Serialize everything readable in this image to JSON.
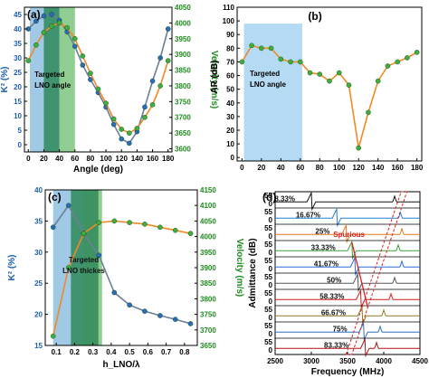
{
  "chart_data": [
    {
      "panel": "(a)",
      "type": "line",
      "xlabel": "Angle (deg)",
      "ylabel": "K² (%)",
      "ylabel_right": "Velocity (m/s)",
      "xlim": [
        -5,
        185
      ],
      "ylim": [
        -2.5,
        47.5
      ],
      "ylim_right": [
        3590,
        4050
      ],
      "xticks": [
        0,
        20,
        40,
        60,
        80,
        100,
        120,
        140,
        160,
        180
      ],
      "yticks": [
        0,
        5,
        10,
        15,
        20,
        25,
        30,
        35,
        40,
        45
      ],
      "yticks_right": [
        3600,
        3650,
        3700,
        3750,
        3800,
        3850,
        3900,
        3950,
        4000,
        4050
      ],
      "annotation": "Targeted LNO angle",
      "series": [
        {
          "axis": "left",
          "color": "#6b7f99",
          "marker": "#2a6cb8",
          "x": [
            0,
            10,
            20,
            30,
            40,
            50,
            60,
            70,
            80,
            90,
            100,
            110,
            120,
            130,
            140,
            150,
            160,
            170,
            180
          ],
          "values": [
            40.0,
            42.7,
            44.5,
            45.0,
            43.0,
            39.0,
            34.0,
            27.5,
            22.5,
            18.0,
            13.0,
            7.0,
            2.0,
            0.5,
            4.5,
            13.0,
            22.0,
            30.0,
            40.0
          ]
        },
        {
          "axis": "right",
          "color": "#f08a24",
          "marker": "#3fae3f",
          "x": [
            0,
            10,
            20,
            30,
            40,
            50,
            60,
            70,
            80,
            90,
            100,
            110,
            120,
            130,
            140,
            150,
            160,
            170,
            180
          ],
          "values": [
            3880,
            3930,
            3970,
            3990,
            4000,
            3985,
            3950,
            3895,
            3840,
            3790,
            3745,
            3695,
            3662,
            3650,
            3665,
            3700,
            3740,
            3800,
            3880
          ]
        }
      ]
    },
    {
      "panel": "(b)",
      "type": "line",
      "ylabel": "AR (dB)",
      "xlim": [
        -5,
        185
      ],
      "ylim": [
        -2.5,
        110
      ],
      "xticks": [
        0,
        20,
        40,
        60,
        80,
        100,
        120,
        140,
        160,
        180
      ],
      "yticks": [
        0,
        10,
        20,
        30,
        40,
        50,
        60,
        70,
        80,
        90,
        100,
        110
      ],
      "annotation": "Targeted LNO angle",
      "series": [
        {
          "color": "#f08a24",
          "marker": "#3fae3f",
          "x": [
            0,
            10,
            20,
            30,
            40,
            50,
            60,
            70,
            80,
            90,
            100,
            110,
            120,
            130,
            140,
            150,
            160,
            170,
            180
          ],
          "values": [
            70,
            82,
            80,
            80,
            72,
            70,
            70,
            62,
            61,
            56,
            62,
            53,
            7,
            33,
            56,
            67,
            70,
            73,
            77
          ]
        }
      ]
    },
    {
      "panel": "(c)",
      "type": "line",
      "xlabel": "h_LNO/λ",
      "ylabel": "K² (%)",
      "ylabel_right": "Velocity (m/s)",
      "xlim": [
        0.04,
        0.87
      ],
      "ylim": [
        15,
        40
      ],
      "ylim_right": [
        3650,
        4150
      ],
      "xticks": [
        0.1,
        0.2,
        0.3,
        0.4,
        0.5,
        0.6,
        0.7,
        0.8
      ],
      "yticks": [
        15,
        20,
        25,
        30,
        35,
        40
      ],
      "yticks_right": [
        3650,
        3700,
        3750,
        3800,
        3850,
        3900,
        3950,
        4000,
        4050,
        4100,
        4150
      ],
      "annotation": "Targeted LNO thickes",
      "series": [
        {
          "axis": "left",
          "color": "#6b7f99",
          "marker": "#2a6cb8",
          "x": [
            0.083,
            0.167,
            0.25,
            0.333,
            0.417,
            0.5,
            0.583,
            0.667,
            0.75,
            0.833
          ],
          "values": [
            34.0,
            37.5,
            33.0,
            29.5,
            23.5,
            21.5,
            20.5,
            19.8,
            19.2,
            18.5
          ]
        },
        {
          "axis": "right",
          "color": "#f08a24",
          "marker": "#3fae3f",
          "x": [
            0.083,
            0.167,
            0.25,
            0.333,
            0.417,
            0.5,
            0.583,
            0.667,
            0.75,
            0.833
          ],
          "values": [
            3680,
            3900,
            4010,
            4045,
            4050,
            4045,
            4040,
            4030,
            4020,
            4010
          ]
        }
      ]
    },
    {
      "panel": "(d)",
      "type": "line",
      "xlabel": "Frequency (MHz)",
      "ylabel": "Admittance (dB)",
      "xlim": [
        2500,
        4500
      ],
      "xticks": [
        2500,
        3000,
        3500,
        4000,
        4500
      ],
      "annotation": "Spurious",
      "traces": [
        {
          "label": "8.33%",
          "color": "#111111",
          "res": 3000,
          "spur": 4150
        },
        {
          "label": "16.67%",
          "color": "#1e7fd1",
          "res": 3350,
          "spur": 4230
        },
        {
          "label": "25%",
          "color": "#e07b1a",
          "res": 3480,
          "spur": 4250
        },
        {
          "label": "33.33%",
          "color": "#3aa33a",
          "res": 3560,
          "spur": 4200
        },
        {
          "label": "41.67%",
          "color": "#2b6ad8",
          "res": 3600,
          "spur": 4250
        },
        {
          "label": "50%",
          "color": "#555555",
          "res": 3640,
          "spur": 4150
        },
        {
          "label": "58.33%",
          "color": "#d11b1b",
          "res": 3680,
          "spur": 4100
        },
        {
          "label": "66.67%",
          "color": "#8a7d20",
          "res": 3700,
          "spur": 4000
        },
        {
          "label": "75%",
          "color": "#2f70c0",
          "res": 3720,
          "spur": 3950
        },
        {
          "label": "83.33%",
          "color": "#b01010",
          "res": 3740,
          "spur": 3900
        }
      ],
      "trace_ticks": [
        "55",
        "0"
      ]
    }
  ]
}
